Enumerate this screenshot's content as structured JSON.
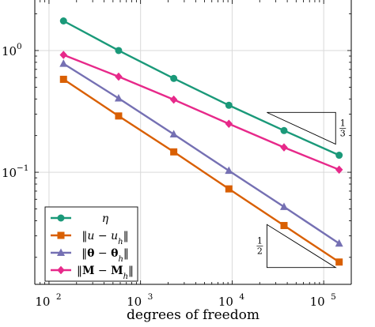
{
  "chart_data": {
    "type": "line",
    "title": "",
    "xlabel": "degrees of freedom",
    "ylabel": "",
    "xscale": "log",
    "yscale": "log",
    "xlim": [
      70,
      200000
    ],
    "ylim": [
      0.012,
      2.6
    ],
    "grid": true,
    "legend_position": "bottom-left",
    "x_ticks": [
      {
        "base": "10",
        "exp": "2",
        "value": 100
      },
      {
        "base": "10",
        "exp": "3",
        "value": 1000
      },
      {
        "base": "10",
        "exp": "4",
        "value": 10000
      },
      {
        "base": "10",
        "exp": "5",
        "value": 100000
      }
    ],
    "y_ticks": [
      {
        "base": "10",
        "exp": "0",
        "value": 1
      },
      {
        "base": "10",
        "exp": "−1",
        "value": 0.1
      }
    ],
    "x": [
      144,
      576,
      2304,
      9216,
      36864,
      147456
    ],
    "series": [
      {
        "name": "η",
        "label_parts": [
          {
            "t": "η",
            "s": "it"
          }
        ],
        "color": "#1a9979",
        "marker": "circle",
        "values": [
          1.75,
          1.0,
          0.59,
          0.355,
          0.22,
          0.138
        ]
      },
      {
        "name": "‖u − u_h‖",
        "label_parts": [
          {
            "t": "‖",
            "s": ""
          },
          {
            "t": "u",
            "s": "it"
          },
          {
            "t": " − ",
            "s": ""
          },
          {
            "t": "u",
            "s": "it"
          },
          {
            "t": "h",
            "s": "sub"
          },
          {
            "t": "‖",
            "s": ""
          }
        ],
        "color": "#d95f02",
        "marker": "square",
        "values": [
          0.58,
          0.29,
          0.147,
          0.073,
          0.0365,
          0.0183
        ]
      },
      {
        "name": "‖θ − θ_h‖",
        "label_parts": [
          {
            "t": "‖",
            "s": ""
          },
          {
            "t": "θ",
            "s": "bf"
          },
          {
            "t": " − ",
            "s": ""
          },
          {
            "t": "θ",
            "s": "bf"
          },
          {
            "t": "h",
            "s": "sub"
          },
          {
            "t": "‖",
            "s": ""
          }
        ],
        "color": "#7570b3",
        "marker": "triangle",
        "values": [
          0.78,
          0.405,
          0.205,
          0.103,
          0.052,
          0.026
        ]
      },
      {
        "name": "‖M − M_h‖",
        "label_parts": [
          {
            "t": "‖",
            "s": ""
          },
          {
            "t": "M",
            "s": "bf"
          },
          {
            "t": " − ",
            "s": ""
          },
          {
            "t": "M",
            "s": "bf"
          },
          {
            "t": "h",
            "s": "sub"
          },
          {
            "t": "‖",
            "s": ""
          }
        ],
        "color": "#e7298a",
        "marker": "diamond",
        "values": [
          0.92,
          0.61,
          0.395,
          0.25,
          0.16,
          0.105
        ]
      }
    ],
    "slope_triangles": [
      {
        "label_num": "1",
        "label_den": "3",
        "orientation": "upper",
        "x_range": [
          24000,
          135000
        ],
        "y_range": [
          0.17,
          0.31
        ]
      },
      {
        "label_num": "1",
        "label_den": "2",
        "orientation": "lower",
        "x_range": [
          24000,
          135000
        ],
        "y_range": [
          0.0165,
          0.0372
        ]
      }
    ]
  }
}
